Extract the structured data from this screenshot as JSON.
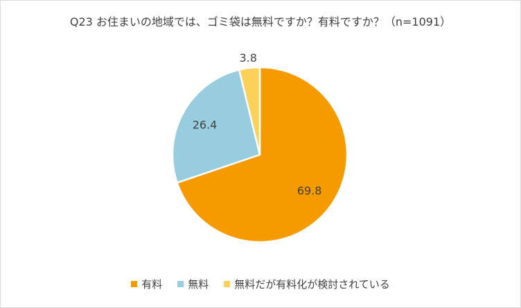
{
  "chart_data": {
    "type": "pie",
    "title": "Q23 お住まいの地域では、ゴミ袋は無料ですか？有料ですか？（n=1091）",
    "categories": [
      "有料",
      "無料",
      "無料だが有料化が検討されている"
    ],
    "values": [
      69.8,
      26.4,
      3.8
    ],
    "colors": [
      "#f59b00",
      "#98cde0",
      "#fcd15a"
    ],
    "start_angle_deg": 0,
    "direction": "clockwise",
    "legend_position": "bottom",
    "data_labels": [
      "69.8",
      "26.4",
      "3.8"
    ]
  }
}
